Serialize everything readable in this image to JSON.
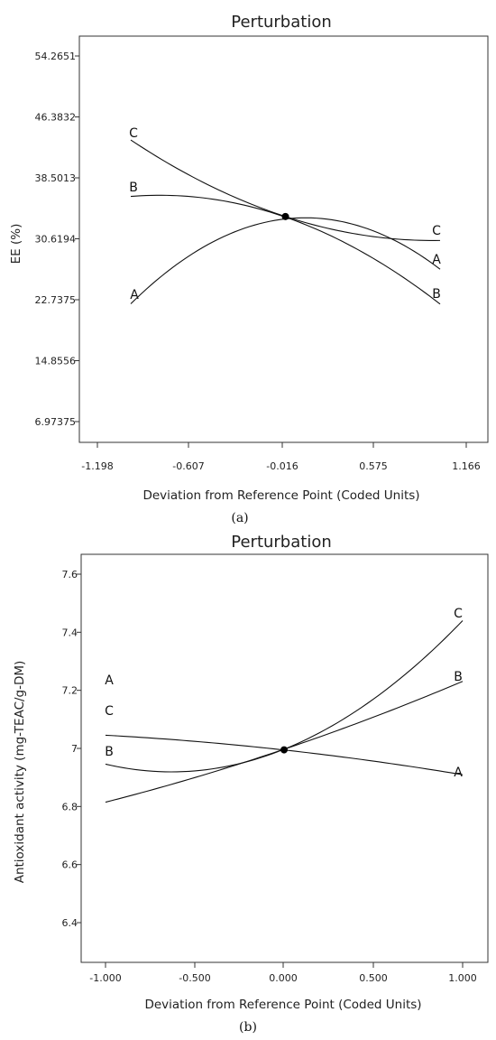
{
  "chart_data": [
    {
      "type": "line",
      "title": "Perturbation",
      "xlabel": "Deviation from Reference Point (Coded Units)",
      "ylabel": "EE   (%)",
      "caption": "(a)",
      "xlim": [
        -1.198,
        1.166
      ],
      "ylim": [
        6.97375,
        54.2651
      ],
      "xticks": [
        "-1.198",
        "-0.607",
        "-0.016",
        "0.575",
        "1.166"
      ],
      "xtick_values": [
        -1.198,
        -0.607,
        -0.016,
        0.575,
        1.166
      ],
      "yticks": [
        "6.97375",
        "14.8556",
        "22.7375",
        "30.6194",
        "38.5013",
        "46.3832",
        "54.2651"
      ],
      "ytick_values": [
        6.97375,
        14.8556,
        22.7375,
        30.6194,
        38.5013,
        46.3832,
        54.2651
      ],
      "reference_point": {
        "x": 0,
        "y": 33.5
      },
      "series": [
        {
          "name": "A",
          "x": [
            -1,
            -0.5,
            0,
            0.5,
            1
          ],
          "y": [
            22.2,
            29.8,
            33.5,
            31.8,
            26.8
          ]
        },
        {
          "name": "B",
          "x": [
            -1,
            -0.5,
            0,
            0.5,
            1
          ],
          "y": [
            36.0,
            36.0,
            33.5,
            28.6,
            22.3
          ]
        },
        {
          "name": "C",
          "x": [
            -1,
            -0.5,
            0,
            0.5,
            1
          ],
          "y": [
            43.4,
            37.6,
            33.5,
            31.1,
            30.4
          ]
        }
      ],
      "curve_labels": {
        "A_start": "A",
        "A_end": "A",
        "B_start": "B",
        "B_end": "B",
        "C_start": "C",
        "C_end": "C"
      }
    },
    {
      "type": "line",
      "title": "Perturbation",
      "xlabel": "Deviation from Reference Point (Coded Units)",
      "ylabel": "Antioxidant activity (mg-TEAC/g-DM)",
      "caption": "(b)",
      "xlim": [
        -1.0,
        1.0
      ],
      "ylim": [
        6.4,
        7.6
      ],
      "xticks": [
        "-1.000",
        "-0.500",
        "0.000",
        "0.500",
        "1.000"
      ],
      "xtick_values": [
        -1.0,
        -0.5,
        0.0,
        0.5,
        1.0
      ],
      "yticks": [
        "6.4",
        "6.6",
        "6.8",
        "7",
        "7.2",
        "7.4",
        "7.6"
      ],
      "ytick_values": [
        6.4,
        6.6,
        6.8,
        7.0,
        7.2,
        7.4,
        7.6
      ],
      "reference_point": {
        "x": 0,
        "y": 6.995
      },
      "series": [
        {
          "name": "A",
          "x": [
            -1,
            -0.5,
            0,
            0.5,
            1
          ],
          "y": [
            7.045,
            7.025,
            6.995,
            6.955,
            6.91
          ]
        },
        {
          "name": "B",
          "x": [
            -1,
            -0.5,
            0,
            0.5,
            1
          ],
          "y": [
            6.815,
            6.9,
            6.995,
            7.11,
            7.23
          ]
        },
        {
          "name": "C",
          "x": [
            -1,
            -0.5,
            0,
            0.5,
            1
          ],
          "y": [
            6.945,
            6.925,
            6.995,
            7.17,
            7.44
          ]
        }
      ],
      "curve_labels": {
        "A_start": "A",
        "A_end": "A",
        "B_start": "B",
        "B_end": "B",
        "C_start": "C",
        "C_end": "C"
      }
    }
  ]
}
